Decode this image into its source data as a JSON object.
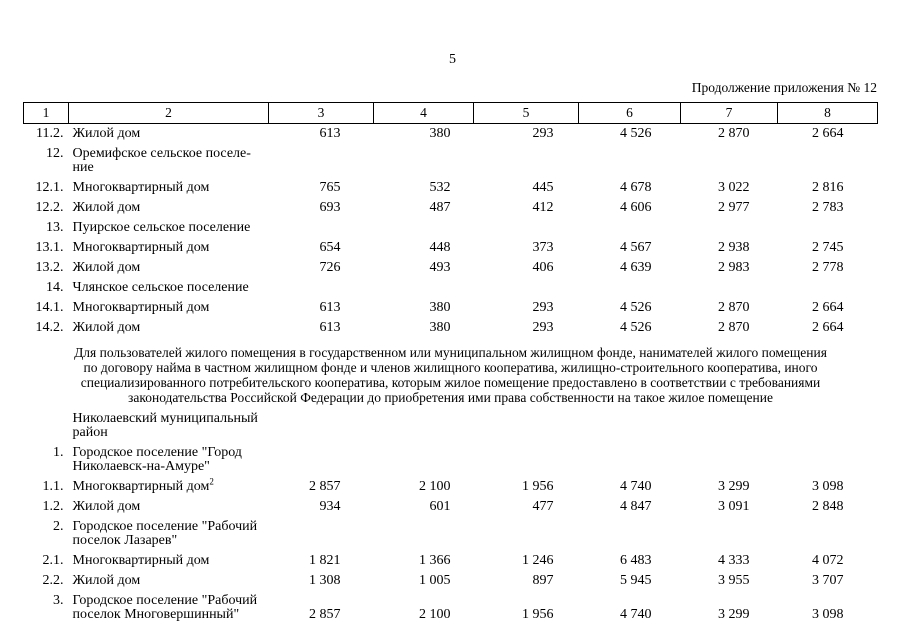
{
  "page": {
    "number": "5",
    "continuation_label": "Продолжение приложения № 12"
  },
  "table": {
    "header_columns": [
      "1",
      "2",
      "3",
      "4",
      "5",
      "6",
      "7",
      "8"
    ],
    "section1_rows": [
      {
        "num": "11.2.",
        "name": "Жилой дом",
        "values": [
          "613",
          "380",
          "293",
          "4 526",
          "2 870",
          "2 664"
        ]
      },
      {
        "num": "12.",
        "name": "Оремифское сельское поселе-\nние",
        "values": []
      },
      {
        "num": "12.1.",
        "name": "Многоквартирный дом",
        "values": [
          "765",
          "532",
          "445",
          "4 678",
          "3 022",
          "2 816"
        ]
      },
      {
        "num": "12.2.",
        "name": "Жилой дом",
        "values": [
          "693",
          "487",
          "412",
          "4 606",
          "2 977",
          "2 783"
        ]
      },
      {
        "num": "13.",
        "name": "Пуирское сельское поселение",
        "values": []
      },
      {
        "num": "13.1.",
        "name": "Многоквартирный дом",
        "values": [
          "654",
          "448",
          "373",
          "4 567",
          "2 938",
          "2 745"
        ]
      },
      {
        "num": "13.2.",
        "name": "Жилой дом",
        "values": [
          "726",
          "493",
          "406",
          "4 639",
          "2 983",
          "2 778"
        ]
      },
      {
        "num": "14.",
        "name": "Члянское сельское поселение",
        "values": []
      },
      {
        "num": "14.1.",
        "name": "Многоквартирный дом",
        "values": [
          "613",
          "380",
          "293",
          "4 526",
          "2 870",
          "2 664"
        ]
      },
      {
        "num": "14.2.",
        "name": "Жилой дом",
        "values": [
          "613",
          "380",
          "293",
          "4 526",
          "2 870",
          "2 664"
        ]
      }
    ],
    "note": "Для пользователей жилого помещения в государственном или муниципальном жилищном фонде, нанимателей жилого помещения\nпо договору найма в частном жилищном фонде и членов жилищного кооператива, жилищно-строительного кооператива, иного\nспециализированного потребительского кооператива, которым жилое помещение предоставлено в соответствии с требованиями\nзаконодательства Российской Федерации до приобретения ими права собственности на такое жилое помещение",
    "section2_rows": [
      {
        "num": "",
        "name": "Николаевский муниципальный\nрайон",
        "values": []
      },
      {
        "num": "1.",
        "name": "Городское поселение \"Город\nНиколаевск-на-Амуре\"",
        "values": []
      },
      {
        "num": "1.1.",
        "name": "Многоквартирный дом",
        "name_sup": "2",
        "values": [
          "2 857",
          "2 100",
          "1 956",
          "4 740",
          "3 299",
          "3 098"
        ]
      },
      {
        "num": "1.2.",
        "name": "Жилой дом",
        "values": [
          "934",
          "601",
          "477",
          "4 847",
          "3 091",
          "2 848"
        ]
      },
      {
        "num": "2.",
        "name": "Городское поселение \"Рабочий\nпоселок Лазарев\"",
        "values": []
      },
      {
        "num": "2.1.",
        "name": "Многоквартирный дом",
        "values": [
          "1 821",
          "1 366",
          "1 246",
          "6 483",
          "4 333",
          "4 072"
        ]
      },
      {
        "num": "2.2.",
        "name": "Жилой дом",
        "values": [
          "1 308",
          "1 005",
          "897",
          "5 945",
          "3 955",
          "3 707"
        ]
      },
      {
        "num": "3.",
        "name": "Городское поселение \"Рабочий\nпоселок Многовершинный\"",
        "values": [
          "2 857",
          "2 100",
          "1 956",
          "4 740",
          "3 299",
          "3 098"
        ]
      }
    ]
  }
}
